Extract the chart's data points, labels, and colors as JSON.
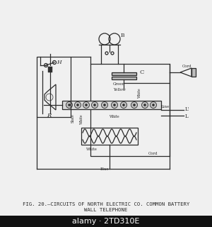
{
  "background_color": "#f0f0f0",
  "diagram_bg": "#f0f0f0",
  "line_color": "#2a2a2a",
  "caption_line1": "FIG. 20.—CIRCUITS OF NORTH ELECTRIC CO. COMMON BATTERY",
  "caption_line2": "WALL TELEPHONE",
  "caption_fontsize": 5.2,
  "watermark_text": "alamy · 2TD310E",
  "watermark_bg": "#111111",
  "watermark_color": "#ffffff",
  "watermark_fontsize": 8,
  "label_B": "B",
  "label_C": "C",
  "label_H": "H",
  "label_R": "R",
  "label_Line": "Line",
  "label_L1": "L'",
  "label_L2": "L",
  "label_Green": "Green",
  "label_Yellow": "Yellow",
  "label_White": "White",
  "label_Slate": "Slate",
  "label_Blue": "Blue",
  "label_Cord": "Cord"
}
